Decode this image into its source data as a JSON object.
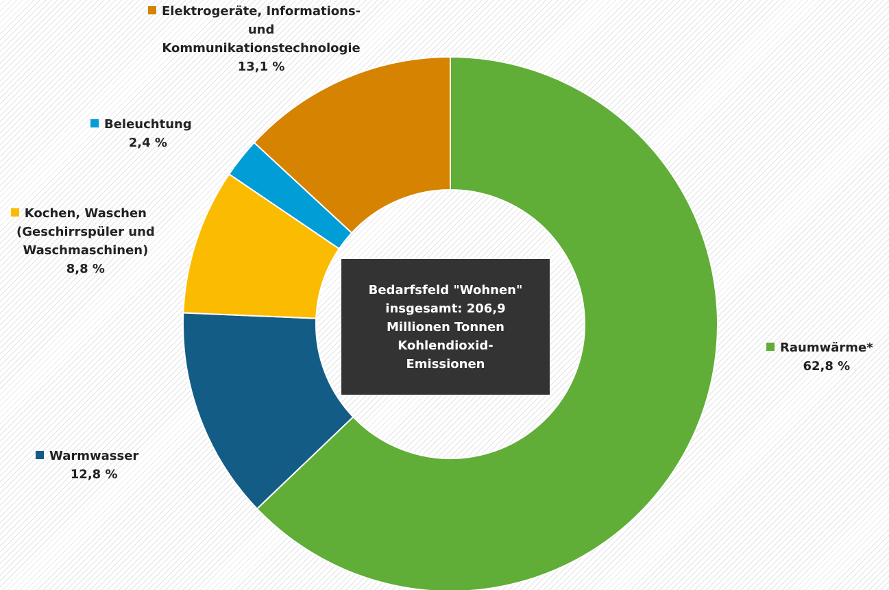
{
  "chart_data": {
    "type": "pie",
    "donut": true,
    "center_text": "Bedarfsfeld \"Wohnen\"\ninsgesamt:  206,9\nMillionen Tonnen\nKohlendioxid-\nEmissionen",
    "categories": [
      "Raumwärme*",
      "Warmwasser",
      "Kochen, Waschen (Geschirrspüler und Waschmaschinen)",
      "Beleuchtung",
      "Elektrogeräte, Informations- und Kommunikationstechnologie"
    ],
    "values": [
      62.8,
      12.8,
      8.8,
      2.4,
      13.1
    ],
    "value_labels": [
      "62,8 %",
      "12,8 %",
      "8,8 %",
      "2,4 %",
      "13,1 %"
    ],
    "colors": [
      "#60ad37",
      "#135c85",
      "#fbbb00",
      "#009dd7",
      "#d58300"
    ],
    "legend": "labels next to slices"
  },
  "labels": {
    "raumwaerme": {
      "name": "Raumwärme*",
      "pct": "62,8 %"
    },
    "warmwasser": {
      "name": "Warmwasser",
      "pct": "12,8 %"
    },
    "kochen": {
      "line1": "Kochen, Waschen",
      "line2": "(Geschirrspüler und",
      "line3": "Waschmaschinen)",
      "pct": "8,8 %"
    },
    "beleuchtung": {
      "name": "Beleuchtung",
      "pct": "2,4 %"
    },
    "elektro": {
      "line1": "Elektrogeräte, Informations-",
      "line2": "und",
      "line3": "Kommunikationstechnologie",
      "pct": "13,1 %"
    }
  }
}
